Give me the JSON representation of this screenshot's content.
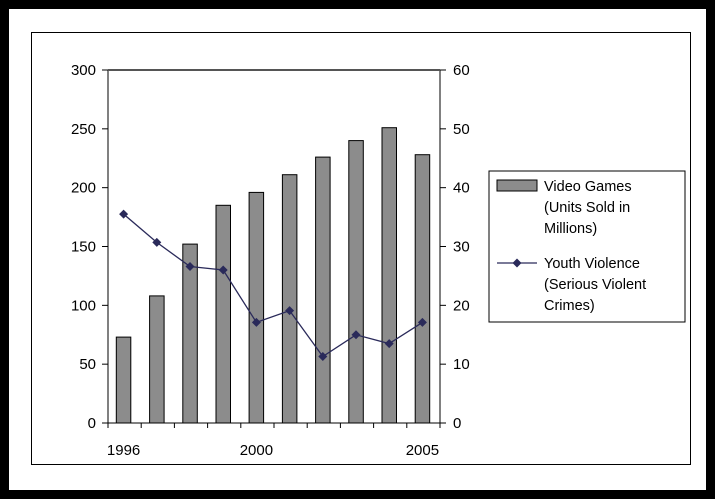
{
  "chart_data": {
    "type": "bar",
    "x": [
      1996,
      1997,
      1998,
      1999,
      2000,
      2001,
      2002,
      2003,
      2004,
      2005
    ],
    "x_tick_labels": [
      "1996",
      "2000",
      "2005"
    ],
    "series": [
      {
        "name": [
          "Video Games",
          "(Units Sold in",
          "Millions)"
        ],
        "type": "bar",
        "axis": "left",
        "values": [
          73,
          108,
          152,
          185,
          196,
          211,
          226,
          240,
          251,
          228
        ]
      },
      {
        "name": [
          "Youth Violence",
          "(Serious Violent",
          "Crimes)"
        ],
        "type": "line",
        "axis": "right",
        "values": [
          35.5,
          30.7,
          26.6,
          26.0,
          17.1,
          19.1,
          11.3,
          15.0,
          13.5,
          17.1
        ]
      }
    ],
    "left_axis": {
      "ylim": [
        0,
        300
      ],
      "ticks": [
        "0",
        "50",
        "100",
        "150",
        "200",
        "250",
        "300"
      ]
    },
    "right_axis": {
      "ylim": [
        0,
        60
      ],
      "ticks": [
        "0",
        "10",
        "20",
        "30",
        "40",
        "50",
        "60"
      ]
    },
    "legend_position": "right",
    "grid": false,
    "colors": {
      "bar_fill": "#8c8c8c",
      "line": "#2a2a5a",
      "marker": "#2a2a5a"
    }
  }
}
